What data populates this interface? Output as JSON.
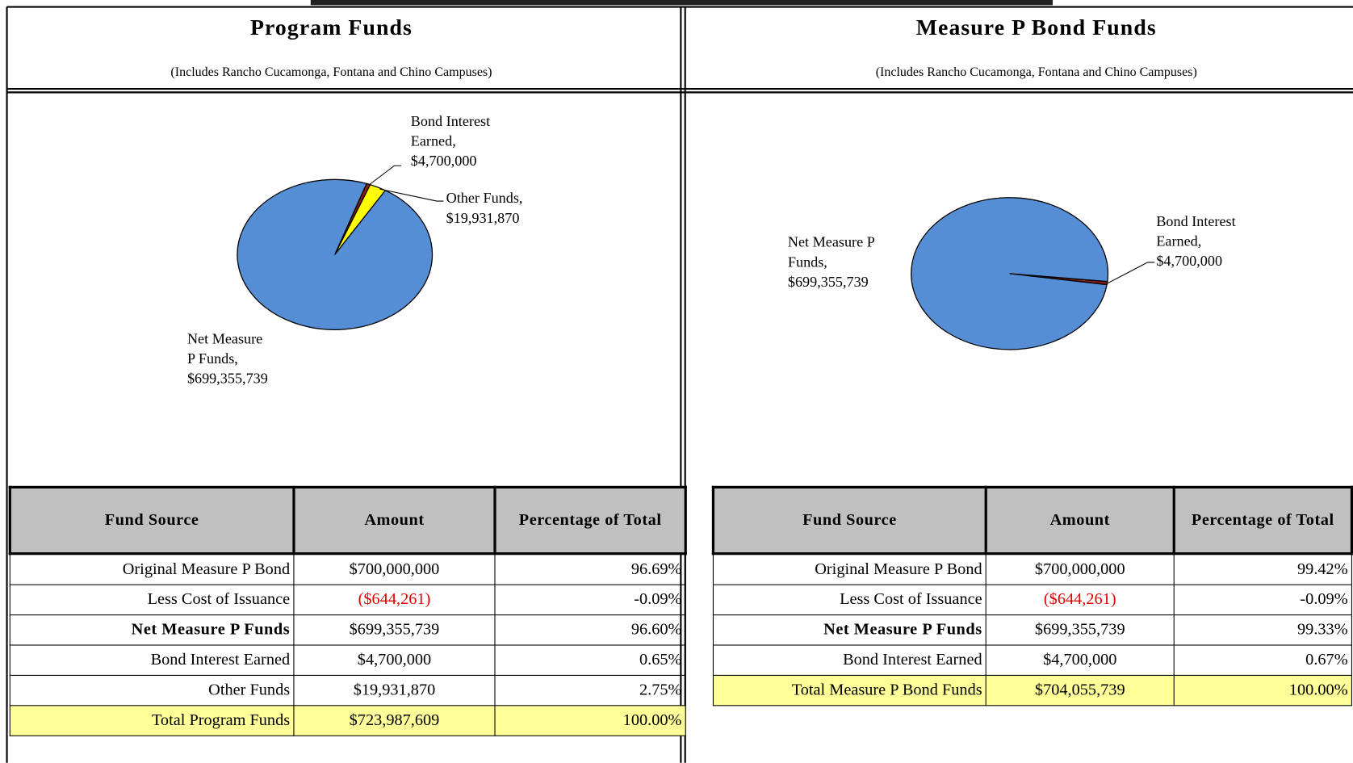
{
  "panels": [
    {
      "title": "Program Funds",
      "subtitle": "(Includes Rancho Cucamonga, Fontana and Chino Campuses)",
      "chart": {
        "type": "pie",
        "slices": [
          {
            "label_lines": [
              "Bond Interest",
              "Earned,",
              "$4,700,000"
            ],
            "value": 4700000,
            "color": "#8b1a1a"
          },
          {
            "label_lines": [
              "Other Funds,",
              "$19,931,870"
            ],
            "value": 19931870,
            "color": "#ffff00"
          },
          {
            "label_lines": [
              "Net Measure",
              "P Funds,",
              "$699,355,739"
            ],
            "value": 699355739,
            "color": "#558ed5"
          }
        ]
      },
      "table": {
        "header": [
          "Fund Source",
          "Amount",
          "Percentage of Total"
        ],
        "rows": [
          {
            "cells": [
              "Original Measure P Bond",
              "$700,000,000",
              "96.69%"
            ]
          },
          {
            "cells": [
              "Less Cost of Issuance",
              "($644,261)",
              "-0.09%"
            ]
          },
          {
            "cells": [
              "Net Measure P Funds",
              "$699,355,739",
              "96.60%"
            ],
            "bold": true
          },
          {
            "cells": [
              "Bond Interest Earned",
              "$4,700,000",
              "0.65%"
            ]
          },
          {
            "cells": [
              "Other Funds",
              "$19,931,870",
              "2.75%"
            ]
          },
          {
            "cells": [
              "Total Program Funds",
              "$723,987,609",
              "100.00%"
            ],
            "total": true
          }
        ]
      }
    },
    {
      "title": "Measure P Bond Funds",
      "subtitle": "(Includes Rancho Cucamonga, Fontana and Chino Campuses)",
      "chart": {
        "type": "pie",
        "slices": [
          {
            "label_lines": [
              "Bond Interest",
              "Earned,",
              "$4,700,000"
            ],
            "value": 4700000,
            "color": "#8b1a1a"
          },
          {
            "label_lines": [
              "Net Measure P",
              "Funds,",
              "$699,355,739"
            ],
            "value": 699355739,
            "color": "#558ed5"
          }
        ]
      },
      "table": {
        "header": [
          "Fund Source",
          "Amount",
          "Percentage of Total"
        ],
        "rows": [
          {
            "cells": [
              "Original Measure P Bond",
              "$700,000,000",
              "99.42%"
            ]
          },
          {
            "cells": [
              "Less Cost of Issuance",
              "($644,261)",
              "-0.09%"
            ]
          },
          {
            "cells": [
              "Net Measure P Funds",
              "$699,355,739",
              "99.33%"
            ],
            "bold": true
          },
          {
            "cells": [
              "Bond Interest Earned",
              "$4,700,000",
              "0.67%"
            ]
          },
          {
            "cells": [
              "Total Measure P Bond Funds",
              "$704,055,739",
              "100.00%"
            ],
            "total": true
          }
        ]
      }
    }
  ]
}
